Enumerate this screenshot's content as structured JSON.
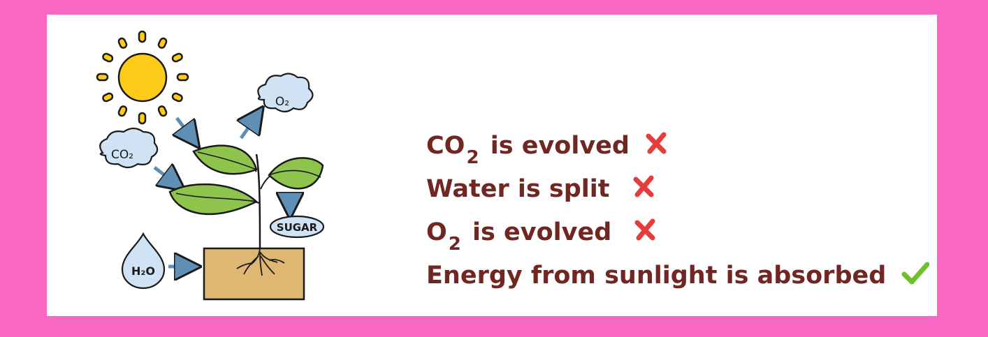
{
  "colors": {
    "background_border": "#fa68c6",
    "panel": "#ffffff",
    "statement_text": "#722622",
    "cross_mark": "#e73c3c",
    "check_mark": "#6ec12a",
    "sun": "#fecb19",
    "cloud": "#cfe3f4",
    "leaf": "#8fc44c",
    "soil_box": "#deb872",
    "outline": "#1a1a1a"
  },
  "diagram": {
    "labels": {
      "co2_cloud": "CO₂",
      "o2_cloud": "O₂",
      "water_drop": "H₂O",
      "sugar": "SUGAR"
    },
    "icons": [
      "sun-icon",
      "cloud-icon",
      "plant-icon",
      "water-drop-icon",
      "arrow-icon",
      "soil-box-icon",
      "roots-icon"
    ]
  },
  "statements": [
    {
      "pre": "CO",
      "sub": "2",
      "post": " is evolved",
      "mark": "cross"
    },
    {
      "pre": "Water is split",
      "sub": "",
      "post": "",
      "mark": "cross"
    },
    {
      "pre": "O",
      "sub": "2",
      "post": " is evolved",
      "mark": "cross"
    },
    {
      "pre": "Energy from sunlight is absorbed",
      "sub": "",
      "post": "",
      "mark": "check"
    }
  ]
}
